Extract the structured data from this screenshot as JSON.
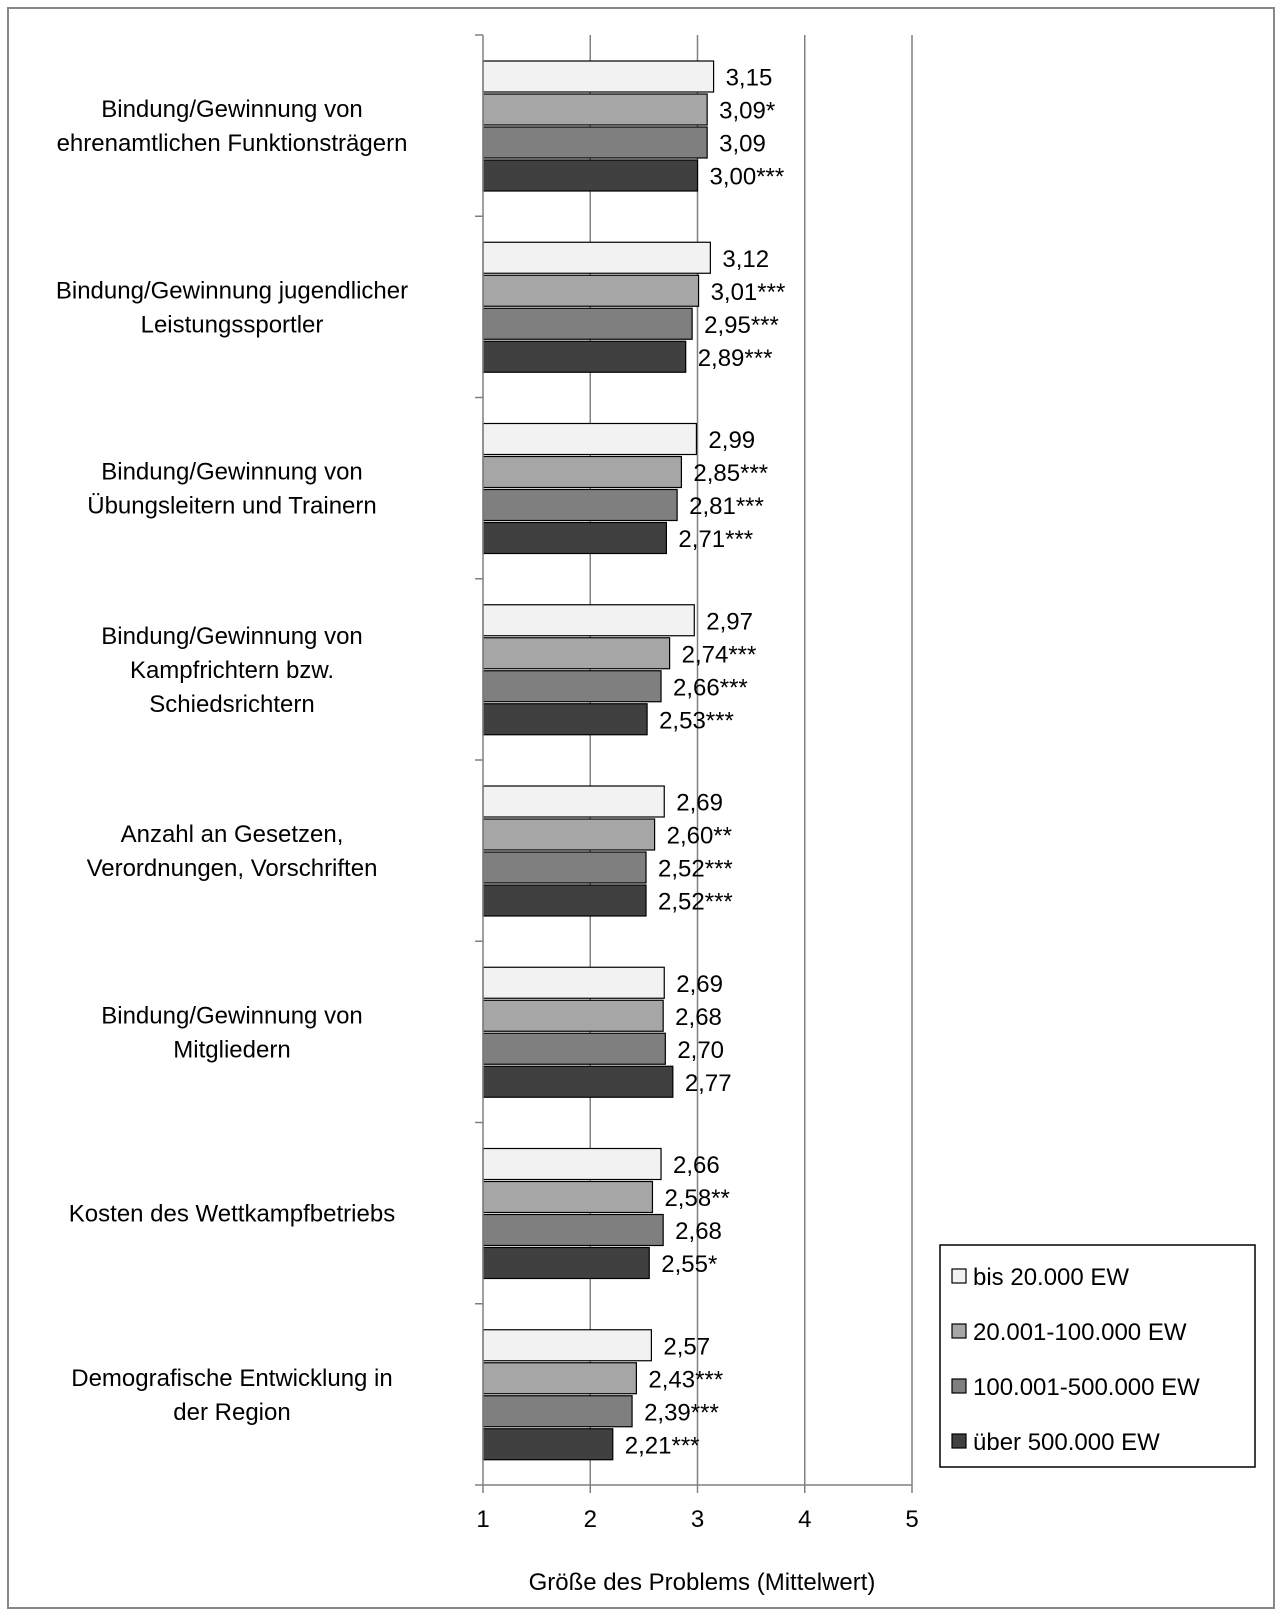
{
  "chart_data": {
    "type": "bar",
    "orientation": "horizontal",
    "title": "",
    "xlabel": "Größe des Problems (Mittelwert)",
    "ylabel": "",
    "xlim": [
      1,
      5
    ],
    "xticks": [
      "1",
      "2",
      "3",
      "4",
      "5"
    ],
    "grid": true,
    "legend_position": "bottom-right",
    "categories": [
      "Bindung/Gewinnung von ehrenamtlichen Funktionsträgern",
      "Bindung/Gewinnung jugendlicher Leistungssportler",
      "Bindung/Gewinnung von Übungsleitern und Trainern",
      "Bindung/Gewinnung von Kampfrichtern bzw. Schiedsrichtern",
      "Anzahl an Gesetzen, Verordnungen, Vorschriften",
      "Bindung/Gewinnung von Mitgliedern",
      "Kosten des Wettkampfbetriebs",
      "Demografische Entwicklung in der Region"
    ],
    "category_label_lines": [
      [
        "Bindung/Gewinnung von",
        "ehrenamtlichen Funktionsträgern"
      ],
      [
        "Bindung/Gewinnung jugendlicher",
        "Leistungssportler"
      ],
      [
        "Bindung/Gewinnung von",
        "Übungsleitern und Trainern"
      ],
      [
        "Bindung/Gewinnung von",
        "Kampfrichtern bzw.",
        "Schiedsrichtern"
      ],
      [
        "Anzahl an Gesetzen,",
        "Verordnungen, Vorschriften"
      ],
      [
        "Bindung/Gewinnung von",
        "Mitgliedern"
      ],
      [
        "Kosten des Wettkampfbetriebs"
      ],
      [
        "Demografische Entwicklung in",
        "der Region"
      ]
    ],
    "series": [
      {
        "name": "bis 20.000 EW",
        "color": "#f2f2f2",
        "values": [
          3.15,
          3.12,
          2.99,
          2.97,
          2.69,
          2.69,
          2.66,
          2.57
        ],
        "labels": [
          "3,15",
          "3,12",
          "2,99",
          "2,97",
          "2,69",
          "2,69",
          "2,66",
          "2,57"
        ]
      },
      {
        "name": "20.001-100.000 EW",
        "color": "#a6a6a6",
        "values": [
          3.09,
          3.01,
          2.85,
          2.74,
          2.6,
          2.68,
          2.58,
          2.43
        ],
        "labels": [
          "3,09*",
          "3,01***",
          "2,85***",
          "2,74***",
          "2,60**",
          "2,68",
          "2,58**",
          "2,43***"
        ]
      },
      {
        "name": "100.001-500.000 EW",
        "color": "#7f7f7f",
        "values": [
          3.09,
          2.95,
          2.81,
          2.66,
          2.52,
          2.7,
          2.68,
          2.39
        ],
        "labels": [
          "3,09",
          "2,95***",
          "2,81***",
          "2,66***",
          "2,52***",
          "2,70",
          "2,68",
          "2,39***"
        ]
      },
      {
        "name": "über 500.000 EW",
        "color": "#404040",
        "values": [
          3.0,
          2.89,
          2.71,
          2.53,
          2.52,
          2.77,
          2.55,
          2.21
        ],
        "labels": [
          "3,00***",
          "2,89***",
          "2,71***",
          "2,53***",
          "2,52***",
          "2,77",
          "2,55*",
          "2,21***"
        ]
      }
    ]
  }
}
